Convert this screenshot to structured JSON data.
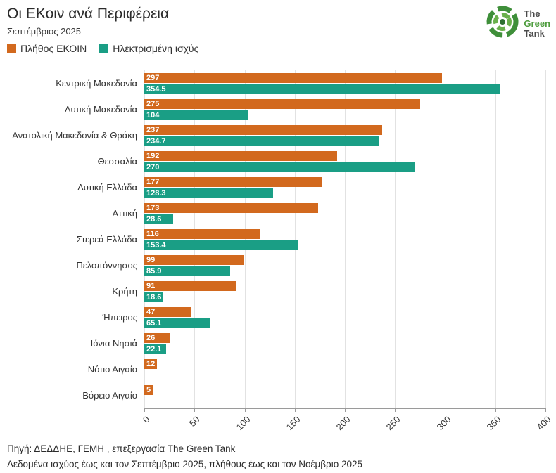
{
  "header": {
    "title": "Οι ΕΚοιν ανά Περιφέρεια",
    "subtitle": "Σεπτέμβριος 2025"
  },
  "logo": {
    "line1": "The",
    "line2": "Green",
    "line3": "Tank"
  },
  "chart_data": {
    "type": "bar",
    "orientation": "horizontal",
    "title": "Οι ΕΚοιν ανά Περιφέρεια",
    "subtitle": "Σεπτέμβριος 2025",
    "categories": [
      "Κεντρική Μακεδονία",
      "Δυτική Μακεδονία",
      "Ανατολική Μακεδονία & Θράκη",
      "Θεσσαλία",
      "Δυτική Ελλάδα",
      "Αττική",
      "Στερεά Ελλάδα",
      "Πελοπόννησος",
      "Κρήτη",
      "Ήπειρος",
      "Ιόνια Νησιά",
      "Νότιο Αιγαίο",
      "Βόρειο Αιγαίο"
    ],
    "series": [
      {
        "name": "Πλήθος ΕΚΟΙΝ",
        "color": "#d2691e",
        "values": [
          297,
          275,
          237,
          192,
          177,
          173,
          116,
          99,
          91,
          47,
          26,
          12,
          5
        ]
      },
      {
        "name": "Ηλεκτρισμένη ισχύς",
        "color": "#1a9e85",
        "values": [
          354.5,
          104,
          234.7,
          270,
          128.3,
          28.6,
          153.4,
          85.9,
          18.6,
          65.1,
          22.1,
          null,
          null
        ]
      }
    ],
    "xlim": [
      0,
      400
    ],
    "xticks": [
      0,
      50,
      100,
      150,
      200,
      250,
      300,
      350,
      400
    ],
    "grid": true,
    "legend_position": "top-left",
    "value_labels": "inside-start"
  },
  "footer": {
    "line1": "Πηγή: ΔΕΔΔΗΕ, ΓΕΜΗ , επεξεργασία The Green Tank",
    "line2": "Δεδομένα ισχύος έως και τον Σεπτέμβριο 2025, πλήθους έως και τον Νοέμβριο 2025"
  }
}
